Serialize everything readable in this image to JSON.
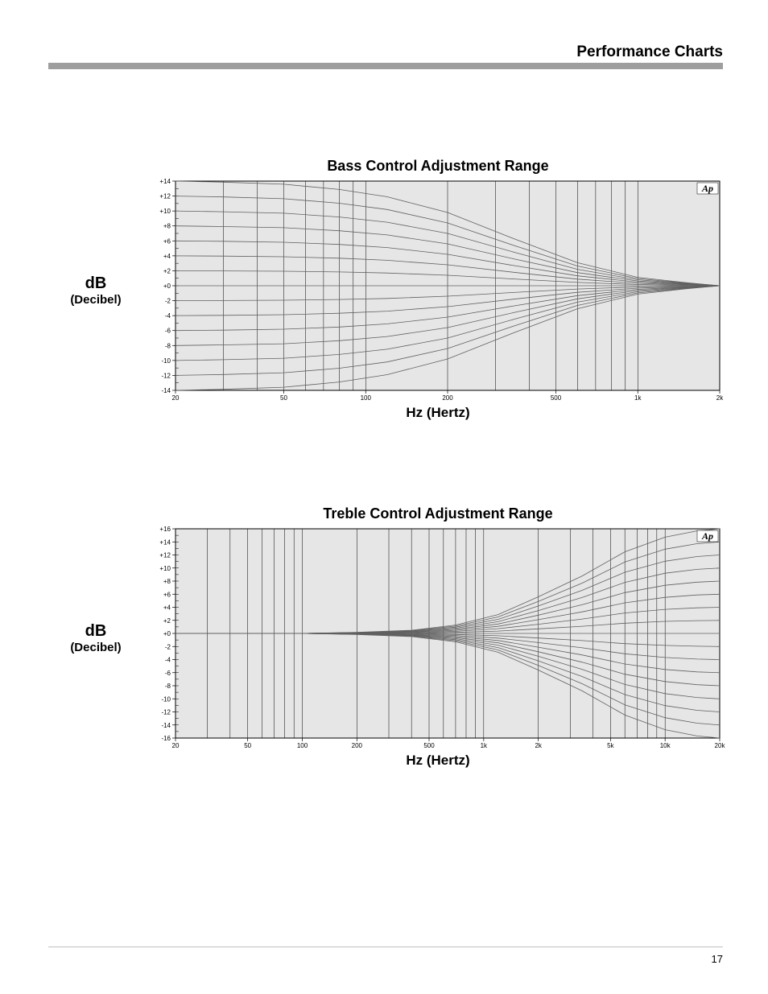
{
  "page": {
    "header_title": "Performance Charts",
    "page_number": "17",
    "header_bar_color": "#9e9e9e",
    "footer_line_color": "#bfbfbf",
    "background": "#ffffff"
  },
  "bass_chart": {
    "type": "line",
    "title": "Bass Control Adjustment Range",
    "ylabel_main": "dB",
    "ylabel_sub": "(Decibel)",
    "xlabel": "Hz (Hertz)",
    "logo": "Ap",
    "plot_bg": "#e6e6e6",
    "grid_color": "#000000",
    "curve_color": "#606060",
    "tick_color": "#000000",
    "label_fontsize": 8,
    "x_scale": "log",
    "xlim": [
      20,
      2000
    ],
    "x_major_ticks": [
      20,
      30,
      40,
      50,
      60,
      70,
      80,
      90,
      100,
      200,
      300,
      400,
      500,
      600,
      700,
      800,
      900,
      1000,
      2000
    ],
    "x_tick_labels": [
      {
        "v": 20,
        "t": "20"
      },
      {
        "v": 50,
        "t": "50"
      },
      {
        "v": 100,
        "t": "100"
      },
      {
        "v": 200,
        "t": "200"
      },
      {
        "v": 500,
        "t": "500"
      },
      {
        "v": 1000,
        "t": "1k"
      },
      {
        "v": 2000,
        "t": "2k"
      }
    ],
    "ylim": [
      -14,
      14
    ],
    "y_ticks": [
      -14,
      -12,
      -10,
      -8,
      -6,
      -4,
      -2,
      0,
      2,
      4,
      6,
      8,
      10,
      12,
      14
    ],
    "y_tick_labels": [
      "-14",
      "-12",
      "-10",
      "-8",
      "-6",
      "-4",
      "-2",
      "+0",
      "+2",
      "+4",
      "+6",
      "+8",
      "+10",
      "+12",
      "+14"
    ],
    "series_levels": [
      14,
      12,
      10,
      8,
      6,
      4,
      2,
      0,
      -2,
      -4,
      -6,
      -8,
      -10,
      -12,
      -14
    ],
    "freq_samples": [
      20,
      30,
      50,
      80,
      120,
      200,
      350,
      600,
      1000,
      1500,
      2000
    ],
    "shelf_factor": [
      1.0,
      0.99,
      0.97,
      0.92,
      0.85,
      0.7,
      0.45,
      0.22,
      0.08,
      0.03,
      0.0
    ]
  },
  "treble_chart": {
    "type": "line",
    "title": "Treble Control Adjustment Range",
    "ylabel_main": "dB",
    "ylabel_sub": "(Decibel)",
    "xlabel": "Hz (Hertz)",
    "logo": "Ap",
    "plot_bg": "#e6e6e6",
    "grid_color": "#000000",
    "curve_color": "#606060",
    "tick_color": "#000000",
    "label_fontsize": 8,
    "x_scale": "log",
    "xlim": [
      20,
      20000
    ],
    "x_major_ticks": [
      20,
      30,
      40,
      50,
      60,
      70,
      80,
      90,
      100,
      200,
      300,
      400,
      500,
      600,
      700,
      800,
      900,
      1000,
      2000,
      3000,
      4000,
      5000,
      6000,
      7000,
      8000,
      9000,
      10000,
      20000
    ],
    "x_tick_labels": [
      {
        "v": 20,
        "t": "20"
      },
      {
        "v": 50,
        "t": "50"
      },
      {
        "v": 100,
        "t": "100"
      },
      {
        "v": 200,
        "t": "200"
      },
      {
        "v": 500,
        "t": "500"
      },
      {
        "v": 1000,
        "t": "1k"
      },
      {
        "v": 2000,
        "t": "2k"
      },
      {
        "v": 5000,
        "t": "5k"
      },
      {
        "v": 10000,
        "t": "10k"
      },
      {
        "v": 20000,
        "t": "20k"
      }
    ],
    "ylim": [
      -16,
      16
    ],
    "y_ticks": [
      -16,
      -14,
      -12,
      -10,
      -8,
      -6,
      -4,
      -2,
      0,
      2,
      4,
      6,
      8,
      10,
      12,
      14,
      16
    ],
    "y_tick_labels": [
      "-16",
      "-14",
      "-12",
      "-10",
      "-8",
      "-6",
      "-4",
      "-2",
      "+0",
      "+2",
      "+4",
      "+6",
      "+8",
      "+10",
      "+12",
      "+14",
      "+16"
    ],
    "series_levels": [
      16,
      14,
      12,
      10,
      8,
      6,
      4,
      2,
      0,
      -2,
      -4,
      -6,
      -8,
      -10,
      -12,
      -14,
      -16
    ],
    "freq_samples": [
      20,
      50,
      100,
      200,
      400,
      700,
      1200,
      2000,
      3500,
      6000,
      10000,
      15000,
      20000
    ],
    "shelf_factor": [
      0.0,
      0.0,
      0.0,
      0.01,
      0.03,
      0.08,
      0.18,
      0.35,
      0.55,
      0.78,
      0.92,
      0.98,
      1.0
    ]
  }
}
